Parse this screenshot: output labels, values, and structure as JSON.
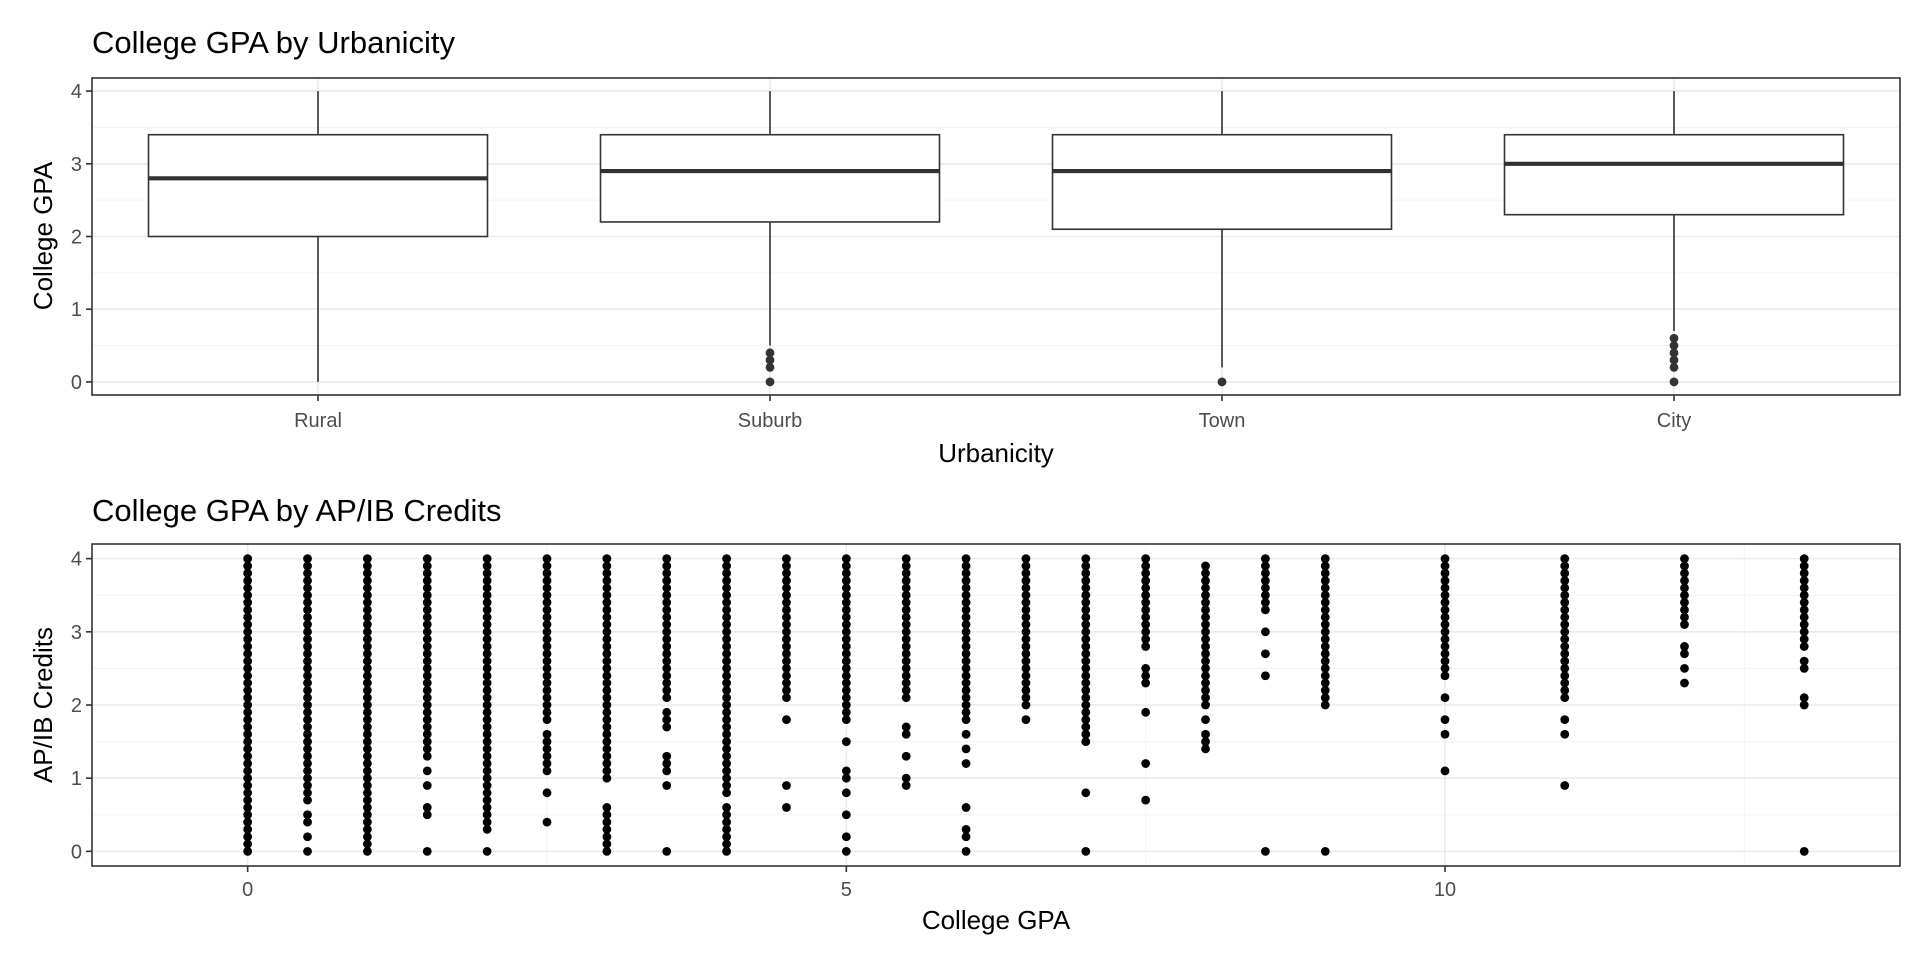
{
  "chart_data": [
    {
      "type": "box",
      "title": "College GPA by Urbanicity",
      "xlabel": "Urbanicity",
      "ylabel": "College GPA",
      "ylim": [
        -0.18,
        4.18
      ],
      "yticks": [
        0,
        1,
        2,
        3,
        4
      ],
      "grid": true,
      "categories": [
        "Rural",
        "Suburb",
        "Town",
        "City"
      ],
      "boxes": [
        {
          "category": "Rural",
          "min": 0,
          "q1": 2.0,
          "median": 2.8,
          "q3": 3.4,
          "max": 4.0,
          "outliers": []
        },
        {
          "category": "Suburb",
          "min": 0.5,
          "q1": 2.2,
          "median": 2.9,
          "q3": 3.4,
          "max": 4.0,
          "outliers": [
            0.0,
            0.2,
            0.3,
            0.4
          ]
        },
        {
          "category": "Town",
          "min": 0.2,
          "q1": 2.1,
          "median": 2.9,
          "q3": 3.4,
          "max": 4.0,
          "outliers": [
            0.0
          ]
        },
        {
          "category": "City",
          "min": 0.7,
          "q1": 2.3,
          "median": 3.0,
          "q3": 3.4,
          "max": 4.0,
          "outliers": [
            0.0,
            0.2,
            0.3,
            0.4,
            0.5,
            0.6
          ]
        }
      ]
    },
    {
      "type": "scatter",
      "title": "College GPA by AP/IB Credits",
      "xlabel": "College GPA",
      "ylabel": "AP/IB Credits",
      "xlim": [
        -1.3,
        13.8
      ],
      "ylim": [
        -0.2,
        4.2
      ],
      "xticks": [
        0,
        5,
        10
      ],
      "yticks": [
        0,
        1,
        2,
        3,
        4
      ],
      "grid": true,
      "columns": [
        {
          "x": 0,
          "spec": "0-4"
        },
        {
          "x": 0.5,
          "spec": "0.7-4;0,0.2,0.4,0.5"
        },
        {
          "x": 1,
          "spec": "0-4"
        },
        {
          "x": 1.5,
          "spec": "1.5-4;0,0.5,0.6,0.9,1.1,1.3,1.4"
        },
        {
          "x": 2,
          "spec": "0.3-4;0"
        },
        {
          "x": 2.5,
          "spec": "1.9-4;1.1,1.2,1.3,1.4,1.5,1.6,1.8,0.8,0.4"
        },
        {
          "x": 3,
          "spec": "1-4;0,0.1,0.2,0.3,0.4,0.5,0.6"
        },
        {
          "x": 3.5,
          "spec": "2.1-4;1.7,1.8,1.9,1.3,1.2,1.1,0.9,0"
        },
        {
          "x": 4,
          "spec": "1-4;0.9,0.8,0.6,0.5,0.4,0.3,0.2,0.1,0"
        },
        {
          "x": 4.5,
          "spec": "2.1-4;1.8,0.9,0.6"
        },
        {
          "x": 5,
          "spec": "1.8-4;1.5,1.1,1.0,0.8,0.5,0.2,0"
        },
        {
          "x": 5.5,
          "spec": "2.1-4;1.7,1.6,1.3,1.0,0.9"
        },
        {
          "x": 6,
          "spec": "1.8-4;1.6,1.4,1.2,0.6,0.3,0.2,0"
        },
        {
          "x": 6.5,
          "spec": "2-4;1.8"
        },
        {
          "x": 7,
          "spec": "1.5-4;0.8,0"
        },
        {
          "x": 7.5,
          "spec": "3-4;2.9,2.8,2.5,2.4,2.3,1.9,1.2,0.7"
        },
        {
          "x": 8,
          "spec": "2.4-3.9;2.3,2.2,2.1,2.0,1.8,1.6,1.5,1.4"
        },
        {
          "x": 8.5,
          "spec": "3.3-4;3.0,2.7,2.4,0"
        },
        {
          "x": 9,
          "spec": "2.1-4;2.0,0"
        },
        {
          "x": 10,
          "spec": "2.4-4;2.1,1.8,1.6,1.1"
        },
        {
          "x": 11,
          "spec": "2.8-4;2.1,2.2,2.3,2.4,2.5,2.6,2.7,1.8,1.6,0.9"
        },
        {
          "x": 12,
          "spec": "3.1-4;2.8,2.7,2.5,2.3"
        },
        {
          "x": 13,
          "spec": "2.8-4;2.6,2.5,2.1,2.0,0"
        }
      ]
    }
  ]
}
